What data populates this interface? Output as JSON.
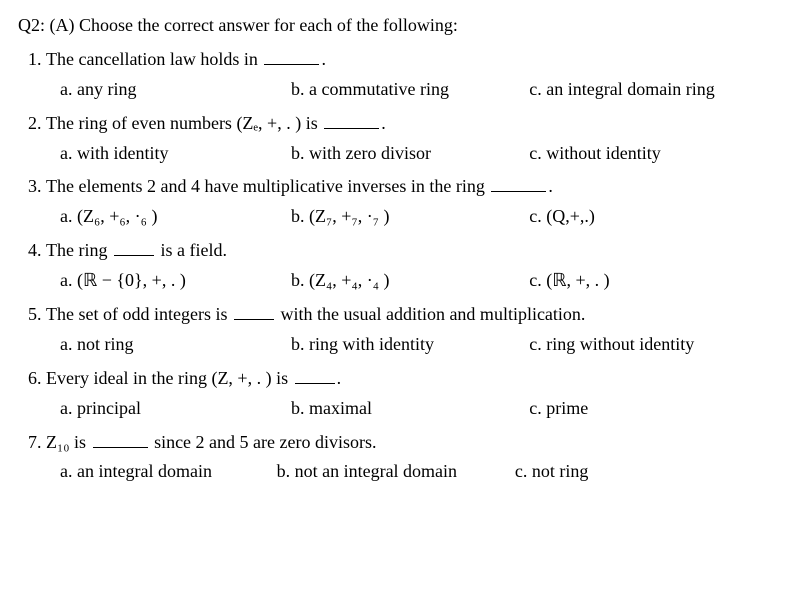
{
  "heading": "Q2: (A) Choose the correct answer for each of the following:",
  "q1": {
    "stem_pre": "The cancellation law holds in ",
    "stem_post": ".",
    "a": "a.  any ring",
    "b": "b. a commutative ring",
    "c": "c. an integral domain ring"
  },
  "q2": {
    "stem_pre": "The ring of even numbers (Zₑ, +,  . ) is ",
    "stem_post": ".",
    "a": "a.  with identity",
    "b": "b. with zero divisor",
    "c": "c. without identity"
  },
  "q3": {
    "stem_pre": "The elements 2 and 4 have multiplicative inverses in the ring ",
    "stem_post": ".",
    "a": "a.  (Z₆, +₆, ·₆ )",
    "b": "b. (Z₇, +₇, ·₇ )",
    "c": "c. (Q,+,.)"
  },
  "q4": {
    "stem_pre": "The ring ",
    "stem_post": " is a field.",
    "a": "a.  (ℝ − {0}, +, . )",
    "b": "b. (Z₄, +₄, ·₄ )",
    "c": "c. (ℝ, +, . )"
  },
  "q5": {
    "stem_pre": "The set of odd integers is ",
    "stem_post": " with the usual addition and multiplication.",
    "a": "a.  not ring",
    "b": "b. ring with identity",
    "c": "c. ring without identity"
  },
  "q6": {
    "stem_pre": "Every ideal in the ring (Z, +, . )  is ",
    "stem_post": ".",
    "a": "a.  principal",
    "b": "b. maximal",
    "c": "c. prime"
  },
  "q7": {
    "stem_pre": "Z₁₀ is ",
    "stem_post": " since 2 and 5 are zero divisors.",
    "a": "a.  an integral domain",
    "b": "b. not an integral domain",
    "c": "c. not ring"
  }
}
